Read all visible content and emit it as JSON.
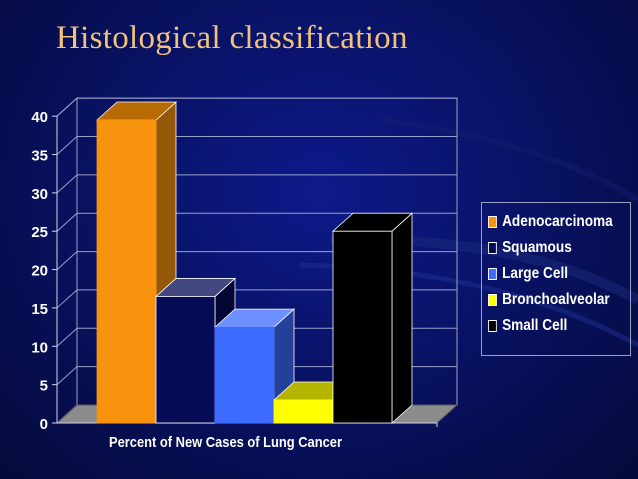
{
  "chart_data": {
    "type": "bar",
    "title": "Histological classification",
    "xlabel": "Percent of New Cases of Lung Cancer",
    "ylabel": "",
    "ylim": [
      0,
      40
    ],
    "yticks": [
      "0",
      "5",
      "10",
      "15",
      "20",
      "25",
      "30",
      "35",
      "40"
    ],
    "grid": true,
    "legend_position": "right",
    "series": [
      {
        "name": "Adenocarcinoma",
        "values": [
          39.5
        ],
        "color": "#f7930d"
      },
      {
        "name": "Squamous",
        "values": [
          16.5
        ],
        "color": "#060b55"
      },
      {
        "name": "Large Cell",
        "values": [
          12.5
        ],
        "color": "#3d6bff"
      },
      {
        "name": "Bronchoalveolar",
        "values": [
          3
        ],
        "color": "#ffff00"
      },
      {
        "name": "Small Cell",
        "values": [
          25
        ],
        "color": "#000000"
      }
    ]
  }
}
